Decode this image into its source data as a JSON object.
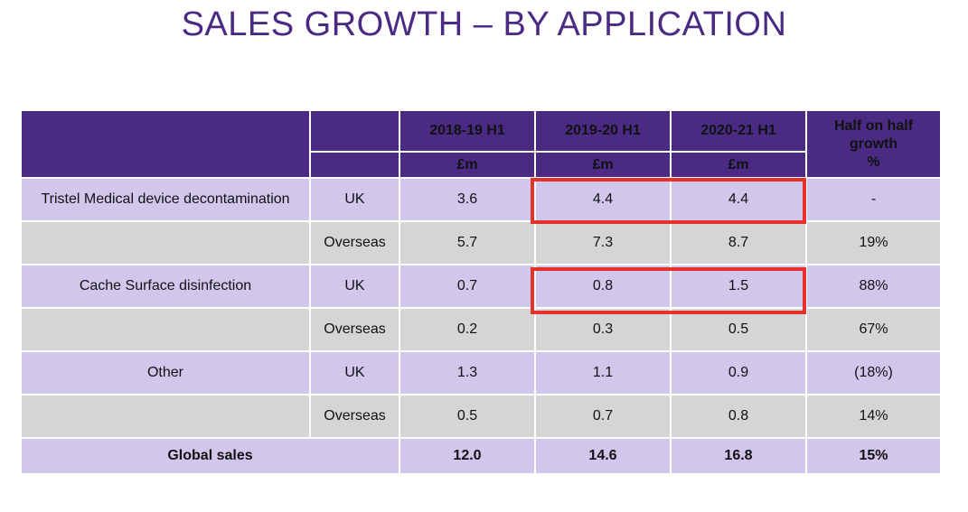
{
  "title": "SALES GROWTH – BY APPLICATION",
  "header": {
    "periods": [
      "2018-19 H1",
      "2019-20 H1",
      "2020-21 H1"
    ],
    "unit": "£m",
    "growth_label": "Half on half growth",
    "growth_unit": "%"
  },
  "rows": [
    {
      "application": "Tristel Medical device decontamination",
      "region": "UK",
      "values": [
        "3.6",
        "4.4",
        "4.4"
      ],
      "growth": "-"
    },
    {
      "application": "",
      "region": "Overseas",
      "values": [
        "5.7",
        "7.3",
        "8.7"
      ],
      "growth": "19%"
    },
    {
      "application": "Cache Surface disinfection",
      "region": "UK",
      "values": [
        "0.7",
        "0.8",
        "1.5"
      ],
      "growth": "88%"
    },
    {
      "application": "",
      "region": "Overseas",
      "values": [
        "0.2",
        "0.3",
        "0.5"
      ],
      "growth": "67%"
    },
    {
      "application": "Other",
      "region": "UK",
      "values": [
        "1.3",
        "1.1",
        "0.9"
      ],
      "growth": "(18%)"
    },
    {
      "application": "",
      "region": "Overseas",
      "values": [
        "0.5",
        "0.7",
        "0.8"
      ],
      "growth": "14%"
    }
  ],
  "total": {
    "label": "Global sales",
    "values": [
      "12.0",
      "14.6",
      "16.8"
    ],
    "growth": "15%"
  },
  "colors": {
    "header": "#4b2a83",
    "row_purple": "#d1c6ec",
    "row_grey": "#d5d5d5",
    "highlight": "#e4322b"
  }
}
